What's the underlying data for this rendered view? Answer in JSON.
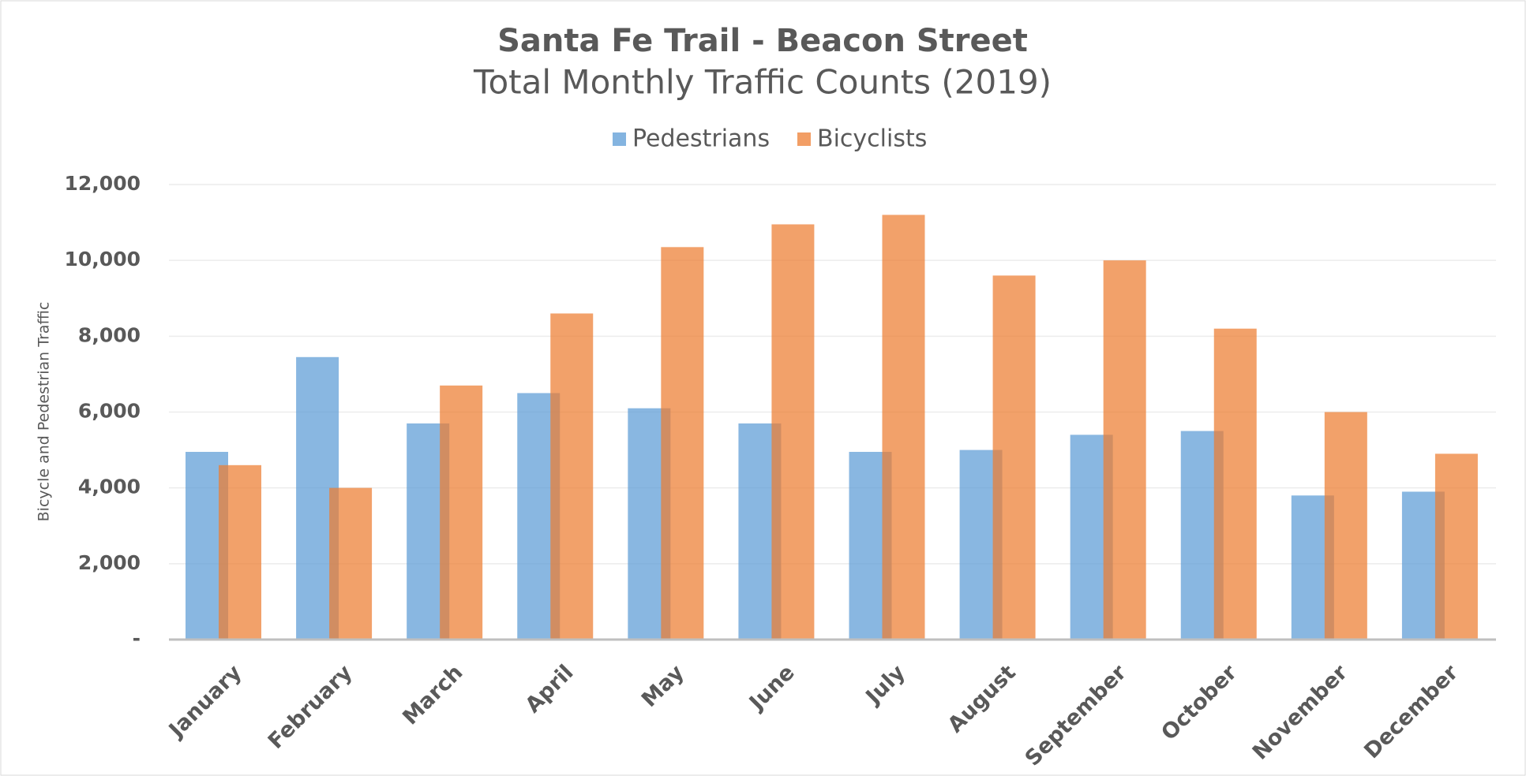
{
  "chart_data": {
    "type": "bar",
    "title": "Santa Fe Trail - Beacon Street",
    "subtitle": "Total Monthly Traffic Counts (2019)",
    "y_label": "Bicycle and Pedestrian Traffic",
    "categories": [
      "January",
      "February",
      "March",
      "April",
      "May",
      "June",
      "July",
      "August",
      "September",
      "October",
      "November",
      "December"
    ],
    "series": [
      {
        "name": "Pedestrians",
        "color": "#5b9bd5",
        "values": [
          4950,
          7450,
          5700,
          6500,
          6100,
          5700,
          4950,
          5000,
          5400,
          5500,
          3800,
          3900
        ]
      },
      {
        "name": "Bicyclists",
        "color": "#ed7d31",
        "values": [
          4600,
          4000,
          6700,
          8600,
          10350,
          10950,
          11200,
          9600,
          10000,
          8200,
          6000,
          4900
        ]
      }
    ],
    "ylim": [
      0,
      12000
    ],
    "yticks": [
      {
        "value": 0,
        "label": "-"
      },
      {
        "value": 2000,
        "label": "2,000"
      },
      {
        "value": 4000,
        "label": "4,000"
      },
      {
        "value": 6000,
        "label": "6,000"
      },
      {
        "value": 8000,
        "label": "8,000"
      },
      {
        "value": 10000,
        "label": "10,000"
      },
      {
        "value": 12000,
        "label": "12,000"
      }
    ],
    "grid": true,
    "legend": "top"
  }
}
